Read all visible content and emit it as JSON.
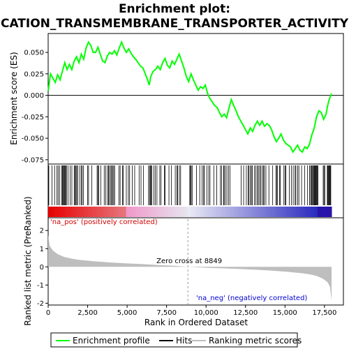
{
  "chart_data": {
    "type": "line",
    "title_line1": "Enrichment plot:",
    "title_line2": "CATION_TRANSMEMBRANE_TRANSPORTER_ACTIVITY",
    "colors": {
      "profile": "#00ff00",
      "hits": "#000000",
      "metric_fill": "#bebebe",
      "pos_label": "#cc0000",
      "neg_label": "#0000cc",
      "zero_cross_line": "#999999"
    },
    "top_panel": {
      "ylabel": "Enrichment score (ES)",
      "ylim": [
        -0.08,
        0.072
      ],
      "yticks": [
        0.05,
        0.025,
        0.0,
        -0.025,
        -0.05,
        -0.075
      ],
      "ytick_labels": [
        "0.050",
        "0.025",
        "0.000",
        "-0.025",
        "-0.050",
        "-0.075"
      ],
      "profile_points": [
        [
          0,
          0.005
        ],
        [
          150,
          0.025
        ],
        [
          300,
          0.02
        ],
        [
          450,
          0.015
        ],
        [
          600,
          0.024
        ],
        [
          750,
          0.018
        ],
        [
          900,
          0.028
        ],
        [
          1050,
          0.038
        ],
        [
          1200,
          0.03
        ],
        [
          1350,
          0.036
        ],
        [
          1500,
          0.03
        ],
        [
          1650,
          0.04
        ],
        [
          1800,
          0.045
        ],
        [
          1950,
          0.038
        ],
        [
          2100,
          0.048
        ],
        [
          2250,
          0.042
        ],
        [
          2400,
          0.055
        ],
        [
          2550,
          0.062
        ],
        [
          2700,
          0.058
        ],
        [
          2850,
          0.05
        ],
        [
          3000,
          0.05
        ],
        [
          3150,
          0.056
        ],
        [
          3300,
          0.048
        ],
        [
          3450,
          0.04
        ],
        [
          3600,
          0.038
        ],
        [
          3750,
          0.046
        ],
        [
          3900,
          0.05
        ],
        [
          4050,
          0.048
        ],
        [
          4200,
          0.052
        ],
        [
          4350,
          0.047
        ],
        [
          4500,
          0.055
        ],
        [
          4650,
          0.062
        ],
        [
          4800,
          0.055
        ],
        [
          4950,
          0.05
        ],
        [
          5100,
          0.054
        ],
        [
          5250,
          0.049
        ],
        [
          5400,
          0.045
        ],
        [
          5550,
          0.042
        ],
        [
          5700,
          0.038
        ],
        [
          5850,
          0.034
        ],
        [
          6000,
          0.032
        ],
        [
          6150,
          0.025
        ],
        [
          6300,
          0.018
        ],
        [
          6400,
          0.012
        ],
        [
          6500,
          0.022
        ],
        [
          6650,
          0.028
        ],
        [
          6800,
          0.03
        ],
        [
          6950,
          0.034
        ],
        [
          7100,
          0.03
        ],
        [
          7250,
          0.038
        ],
        [
          7400,
          0.043
        ],
        [
          7550,
          0.035
        ],
        [
          7700,
          0.032
        ],
        [
          7850,
          0.04
        ],
        [
          8000,
          0.036
        ],
        [
          8150,
          0.042
        ],
        [
          8300,
          0.048
        ],
        [
          8450,
          0.04
        ],
        [
          8600,
          0.032
        ],
        [
          8750,
          0.022
        ],
        [
          8900,
          0.016
        ],
        [
          9050,
          0.025
        ],
        [
          9200,
          0.018
        ],
        [
          9350,
          0.012
        ],
        [
          9500,
          0.006
        ],
        [
          9650,
          0.01
        ],
        [
          9800,
          0.008
        ],
        [
          9950,
          0.012
        ],
        [
          10100,
          0.002
        ],
        [
          10250,
          -0.004
        ],
        [
          10400,
          -0.008
        ],
        [
          10550,
          -0.012
        ],
        [
          10700,
          -0.014
        ],
        [
          10850,
          -0.02
        ],
        [
          11000,
          -0.025
        ],
        [
          11150,
          -0.022
        ],
        [
          11300,
          -0.026
        ],
        [
          11450,
          -0.015
        ],
        [
          11600,
          -0.005
        ],
        [
          11750,
          -0.012
        ],
        [
          11900,
          -0.018
        ],
        [
          12050,
          -0.025
        ],
        [
          12200,
          -0.03
        ],
        [
          12350,
          -0.035
        ],
        [
          12500,
          -0.04
        ],
        [
          12650,
          -0.045
        ],
        [
          12800,
          -0.038
        ],
        [
          12950,
          -0.042
        ],
        [
          13100,
          -0.035
        ],
        [
          13250,
          -0.03
        ],
        [
          13400,
          -0.035
        ],
        [
          13550,
          -0.03
        ],
        [
          13700,
          -0.036
        ],
        [
          13850,
          -0.033
        ],
        [
          14000,
          -0.035
        ],
        [
          14150,
          -0.04
        ],
        [
          14300,
          -0.048
        ],
        [
          14450,
          -0.054
        ],
        [
          14600,
          -0.05
        ],
        [
          14750,
          -0.045
        ],
        [
          14900,
          -0.052
        ],
        [
          15050,
          -0.056
        ],
        [
          15200,
          -0.058
        ],
        [
          15350,
          -0.06
        ],
        [
          15500,
          -0.066
        ],
        [
          15650,
          -0.062
        ],
        [
          15800,
          -0.058
        ],
        [
          15950,
          -0.064
        ],
        [
          16100,
          -0.066
        ],
        [
          16250,
          -0.06
        ],
        [
          16400,
          -0.062
        ],
        [
          16550,
          -0.057
        ],
        [
          16700,
          -0.046
        ],
        [
          16850,
          -0.038
        ],
        [
          17000,
          -0.025
        ],
        [
          17150,
          -0.018
        ],
        [
          17300,
          -0.02
        ],
        [
          17450,
          -0.028
        ],
        [
          17600,
          -0.022
        ],
        [
          17700,
          -0.012
        ],
        [
          17800,
          -0.005
        ],
        [
          17900,
          0.0
        ],
        [
          17950,
          0.002
        ]
      ]
    },
    "hits_panel": {
      "hit_ranks": [
        40,
        240,
        410,
        560,
        630,
        720,
        850,
        900,
        940,
        980,
        1030,
        1070,
        1110,
        1160,
        1260,
        1390,
        1500,
        1650,
        1700,
        1760,
        1810,
        1870,
        2000,
        2100,
        2160,
        2240,
        2500,
        2560,
        2760,
        3100,
        3150,
        3210,
        3330,
        3550,
        3640,
        3760,
        3820,
        3880,
        3970,
        4020,
        4080,
        4150,
        4210,
        4480,
        4560,
        4710,
        4760,
        4950,
        5080,
        5160,
        5330,
        5480,
        5760,
        5880,
        6040,
        6360,
        6420,
        6480,
        6510,
        6560,
        6690,
        6790,
        6890,
        7070,
        7150,
        7360,
        7410,
        7650,
        7800,
        8050,
        8150,
        8200,
        8310,
        8390,
        8970,
        9010,
        9060,
        9120,
        9390,
        9600,
        9750,
        9850,
        9890,
        10050,
        10170,
        10250,
        10490,
        10680,
        10910,
        10980,
        11110,
        11140,
        11220,
        11320,
        11420,
        11520,
        12220,
        12380,
        12550,
        12660,
        12720,
        12810,
        12870,
        12930,
        13060,
        13150,
        13250,
        13310,
        13390,
        13460,
        13560,
        13630,
        13690,
        13790,
        13980,
        14220,
        14430,
        14460,
        14520,
        14660,
        14700,
        14930,
        15010,
        15060,
        15270,
        15400,
        15520,
        15640,
        15690,
        15800,
        15880,
        16050,
        16250,
        16430,
        16560,
        16620,
        16680,
        16710,
        16760,
        16810,
        16850,
        16890,
        16930,
        16970,
        17010,
        17050,
        17090,
        17420,
        17470,
        17520,
        17680,
        17710,
        17740,
        17780,
        17820,
        17860,
        17900
      ]
    },
    "bottom_panel": {
      "ylabel": "Ranked list metric (PreRanked)",
      "ylim": [
        -2.1,
        2.7
      ],
      "yticks": [
        2,
        1,
        0,
        -1,
        -2
      ],
      "ytick_labels": [
        "2",
        "1",
        "0",
        "-1",
        "-2"
      ],
      "metric_points": [
        [
          0,
          1.75
        ],
        [
          100,
          1.15
        ],
        [
          300,
          0.9
        ],
        [
          600,
          0.7
        ],
        [
          1000,
          0.55
        ],
        [
          1500,
          0.45
        ],
        [
          2000,
          0.38
        ],
        [
          3000,
          0.3
        ],
        [
          4000,
          0.24
        ],
        [
          5000,
          0.19
        ],
        [
          6000,
          0.15
        ],
        [
          7000,
          0.1
        ],
        [
          8000,
          0.06
        ],
        [
          8849,
          0.0
        ],
        [
          10000,
          -0.05
        ],
        [
          11000,
          -0.08
        ],
        [
          12000,
          -0.11
        ],
        [
          13000,
          -0.15
        ],
        [
          14000,
          -0.2
        ],
        [
          15000,
          -0.26
        ],
        [
          16000,
          -0.34
        ],
        [
          16500,
          -0.4
        ],
        [
          17000,
          -0.5
        ],
        [
          17400,
          -0.65
        ],
        [
          17700,
          -0.85
        ],
        [
          17850,
          -1.1
        ],
        [
          17950,
          -1.85
        ]
      ],
      "pos_label": "'na_pos' (positively correlated)",
      "neg_label": "'na_neg' (negatively correlated)",
      "zero_cross_text": "Zero cross at 8849",
      "zero_cross_rank": 8849
    },
    "xlabel": "Rank in Ordered Dataset",
    "xlim": [
      0,
      18700
    ],
    "xticks": [
      0,
      2500,
      5000,
      7500,
      10000,
      12500,
      15000,
      17500
    ],
    "xtick_labels": [
      "0",
      "2,500",
      "5,000",
      "7,500",
      "10,000",
      "12,500",
      "15,000",
      "17,500"
    ],
    "n_ranks": 17958,
    "legend": [
      "Enrichment profile",
      "Hits",
      "Ranking metric scores"
    ]
  }
}
